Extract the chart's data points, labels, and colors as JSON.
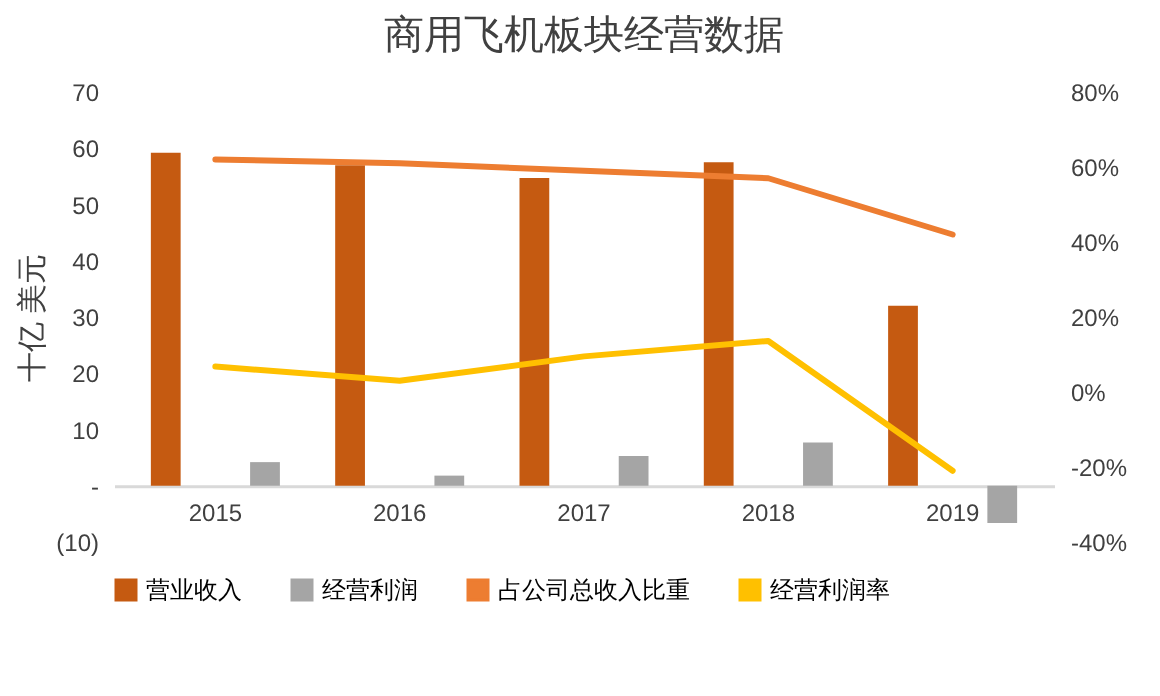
{
  "chart_data": {
    "type": "bar",
    "title": "商用飞机板块经营数据",
    "ylabel": "十亿 美元",
    "categories": [
      "2015",
      "2016",
      "2017",
      "2018",
      "2019"
    ],
    "series": [
      {
        "name": "营业收入",
        "color": "#c55a11",
        "values": [
          59.2,
          57,
          54.7,
          57.5,
          32
        ]
      },
      {
        "name": "经营利润",
        "color": "#a5a5a5",
        "values": [
          4.2,
          1.8,
          5.3,
          7.7,
          -6.6
        ]
      },
      {
        "name": "占公司总收入比重",
        "type": "line",
        "axis": "y2",
        "color": "#ed7d31",
        "values": [
          62,
          61,
          59,
          57,
          42
        ]
      },
      {
        "name": "经营利润率",
        "type": "line",
        "axis": "y2",
        "color": "#ffc000",
        "values": [
          6.8,
          3,
          9.5,
          13.6,
          -21
        ]
      }
    ],
    "ylim": [
      -10,
      70
    ],
    "yticks": [
      {
        "value": -10,
        "label": "(10)"
      },
      {
        "value": 0,
        "label": "-"
      },
      10,
      20,
      30,
      40,
      50,
      60,
      70
    ],
    "y2lim": [
      -40,
      80
    ],
    "y2ticks": [
      {
        "value": -40,
        "label": "-40%"
      },
      {
        "value": -20,
        "label": "-20%"
      },
      {
        "value": 0,
        "label": "0%"
      },
      {
        "value": 20,
        "label": "20%"
      },
      {
        "value": 40,
        "label": "40%"
      },
      {
        "value": 60,
        "label": "60%"
      },
      {
        "value": 80,
        "label": "80%"
      }
    ],
    "legend": "bottom",
    "grid": false,
    "line_style": "solid",
    "marker": "none"
  }
}
